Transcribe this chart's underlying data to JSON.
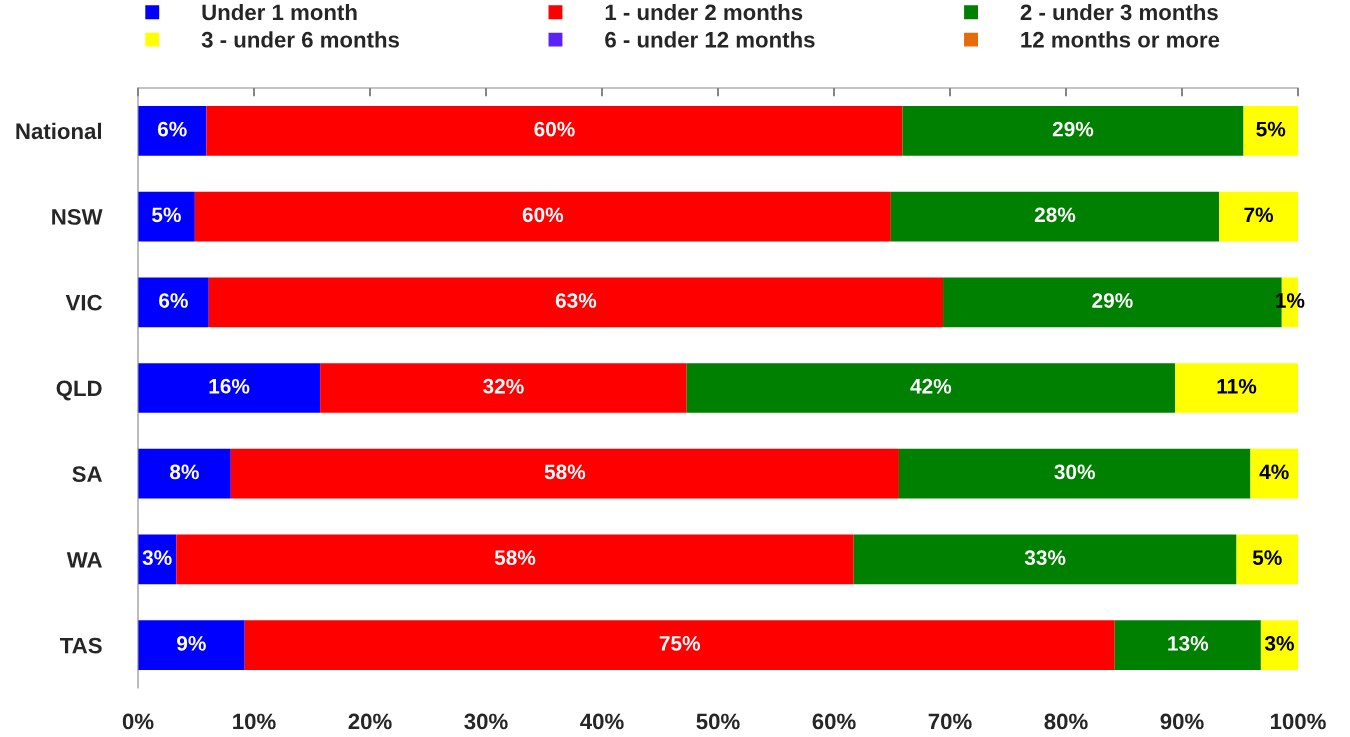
{
  "chart_data": {
    "type": "bar",
    "orientation": "horizontal",
    "stacked": true,
    "categories": [
      "National",
      "NSW",
      "VIC",
      "QLD",
      "SA",
      "WA",
      "TAS"
    ],
    "series": [
      {
        "name": "Under 1 month",
        "color": "#0000ff",
        "values": [
          5.9,
          4.9,
          6.1,
          15.7,
          8.0,
          3.3,
          9.2
        ],
        "value_labels": [
          "6%",
          "5%",
          "6%",
          "16%",
          "8%",
          "3%",
          "9%"
        ]
      },
      {
        "name": "1 - under 2 months",
        "color": "#ff0000",
        "values": [
          60.0,
          60.0,
          63.3,
          31.6,
          57.6,
          58.4,
          75.0
        ],
        "value_labels": [
          "60%",
          "60%",
          "63%",
          "32%",
          "58%",
          "58%",
          "75%"
        ]
      },
      {
        "name": "2 - under 3 months",
        "color": "#008000",
        "values": [
          29.4,
          28.3,
          29.2,
          42.1,
          30.3,
          33.0,
          12.6
        ],
        "value_labels": [
          "29%",
          "28%",
          "29%",
          "42%",
          "30%",
          "33%",
          "13%"
        ]
      },
      {
        "name": "3 - under 6 months",
        "color": "#ffff00",
        "values": [
          4.7,
          6.8,
          1.4,
          10.6,
          4.1,
          5.3,
          3.2
        ],
        "value_labels": [
          "5%",
          "7%",
          "1%",
          "11%",
          "4%",
          "5%",
          "3%"
        ]
      },
      {
        "name": "6 - under 12 months",
        "color": "#5a22f5",
        "values": [
          0,
          0,
          0,
          0,
          0,
          0,
          0
        ]
      },
      {
        "name": "12 months or more",
        "color": "#e46c0a",
        "values": [
          0,
          0,
          0,
          0,
          0,
          0,
          0
        ]
      }
    ],
    "xlim": [
      0,
      100
    ],
    "xticks": [
      {
        "value": 0,
        "label": "0%"
      },
      {
        "value": 10,
        "label": "10%"
      },
      {
        "value": 20,
        "label": "20%"
      },
      {
        "value": 30,
        "label": "30%"
      },
      {
        "value": 40,
        "label": "40%"
      },
      {
        "value": 50,
        "label": "50%"
      },
      {
        "value": 60,
        "label": "60%"
      },
      {
        "value": 70,
        "label": "70%"
      },
      {
        "value": 80,
        "label": "80%"
      },
      {
        "value": 90,
        "label": "90%"
      },
      {
        "value": 100,
        "label": "100%"
      }
    ],
    "grid": false,
    "legend": "top"
  }
}
